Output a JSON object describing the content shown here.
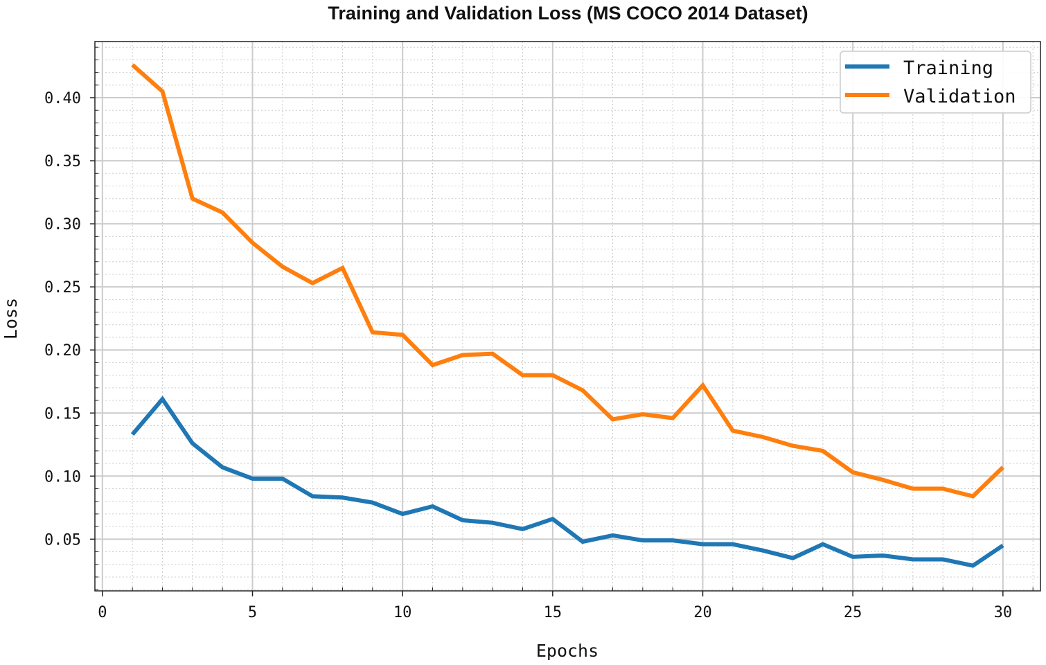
{
  "chart_data": {
    "type": "line",
    "title": "Training and Validation Loss (MS COCO 2014 Dataset)",
    "xlabel": "Epochs",
    "ylabel": "Loss",
    "xlim": [
      -0.25,
      31.25
    ],
    "ylim": [
      0.009,
      0.4445
    ],
    "xticks": [
      0,
      5,
      10,
      15,
      20,
      25,
      30
    ],
    "yticks": [
      0.05,
      0.1,
      0.15,
      0.2,
      0.25,
      0.3,
      0.35,
      0.4
    ],
    "ytick_labels": [
      "0.05",
      "0.10",
      "0.15",
      "0.20",
      "0.25",
      "0.30",
      "0.35",
      "0.40"
    ],
    "grid": true,
    "minor_grid": true,
    "legend_position": "top-right",
    "x": [
      1,
      2,
      3,
      4,
      5,
      6,
      7,
      8,
      9,
      10,
      11,
      12,
      13,
      14,
      15,
      16,
      17,
      18,
      19,
      20,
      21,
      22,
      23,
      24,
      25,
      26,
      27,
      28,
      29,
      30
    ],
    "series": [
      {
        "name": "Training",
        "color": "#1f77b4",
        "values": [
          0.133,
          0.161,
          0.126,
          0.107,
          0.098,
          0.098,
          0.084,
          0.083,
          0.079,
          0.07,
          0.076,
          0.065,
          0.063,
          0.058,
          0.066,
          0.048,
          0.053,
          0.049,
          0.049,
          0.046,
          0.046,
          0.041,
          0.035,
          0.046,
          0.036,
          0.037,
          0.034,
          0.034,
          0.029,
          0.045
        ]
      },
      {
        "name": "Validation",
        "color": "#ff7f0e",
        "values": [
          0.426,
          0.405,
          0.32,
          0.309,
          0.285,
          0.266,
          0.253,
          0.265,
          0.214,
          0.212,
          0.188,
          0.196,
          0.197,
          0.18,
          0.18,
          0.168,
          0.145,
          0.149,
          0.146,
          0.172,
          0.136,
          0.131,
          0.124,
          0.12,
          0.103,
          0.097,
          0.09,
          0.09,
          0.084,
          0.107
        ]
      }
    ]
  }
}
